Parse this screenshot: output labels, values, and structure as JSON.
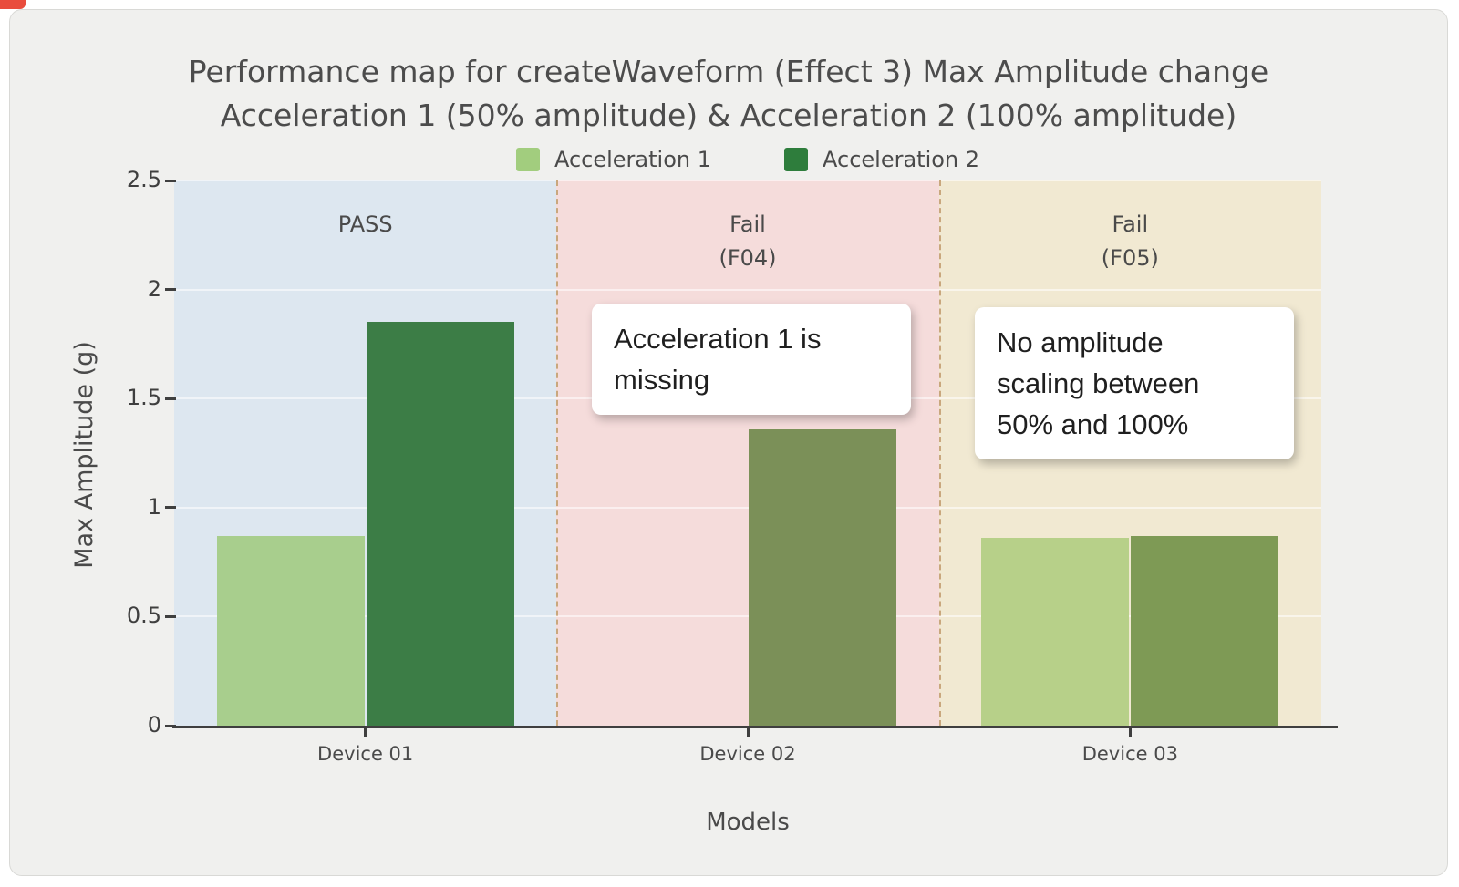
{
  "chart_data": {
    "type": "bar",
    "title": "Performance map for createWaveform (Effect 3) Max Amplitude change Acceleration 1 (50% amplitude) & Acceleration 2 (100% amplitude)",
    "title_lines": [
      "Performance map for createWaveform (Effect 3) Max Amplitude change",
      "Acceleration 1 (50% amplitude) & Acceleration 2 (100% amplitude)"
    ],
    "xlabel": "Models",
    "ylabel": "Max Amplitude (g)",
    "ylim": [
      0,
      2.5
    ],
    "yticks": [
      0,
      0.5,
      1,
      1.5,
      2,
      2.5
    ],
    "grid": true,
    "legend_position": "top",
    "categories": [
      "Device 01",
      "Device 02",
      "Device 03"
    ],
    "series": [
      {
        "name": "Acceleration 1",
        "color": "#a2cd7e",
        "values": [
          0.87,
          null,
          0.86
        ],
        "point_colors": [
          "#a8ce8d",
          null,
          "#b7d089"
        ]
      },
      {
        "name": "Acceleration 2",
        "color": "#2e7d3c",
        "values": [
          1.85,
          1.36,
          0.87
        ],
        "point_colors": [
          "#3c7d46",
          "#7b9058",
          "#7e9a55"
        ]
      }
    ],
    "zones": [
      {
        "label": "PASS",
        "sublabel": "",
        "color": "#dde7f0"
      },
      {
        "label": "Fail",
        "sublabel": "(F04)",
        "color": "#f5dcdb"
      },
      {
        "label": "Fail",
        "sublabel": "(F05)",
        "color": "#f1e9d2"
      }
    ],
    "annotations": [
      {
        "text": "Acceleration 1 is missing",
        "lines": [
          "Acceleration 1 is",
          "missing"
        ]
      },
      {
        "text": "No amplitude scaling between 50% and 100%",
        "lines": [
          "No amplitude",
          "scaling between",
          "50% and 100%"
        ]
      }
    ]
  }
}
